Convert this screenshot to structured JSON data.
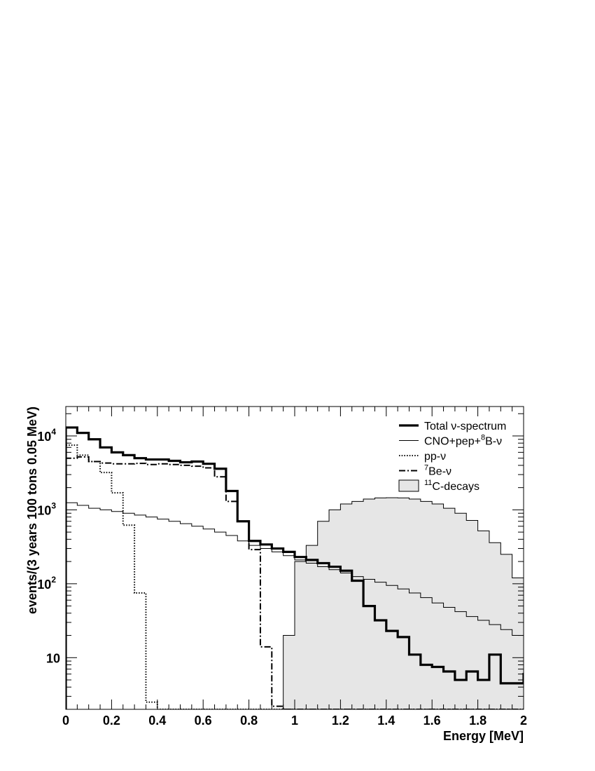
{
  "chart_data": {
    "type": "histogram",
    "xlabel": "Energy [MeV]",
    "ylabel": "events/(3 years  100 tons  0.05 MeV)",
    "xlim": [
      0,
      2
    ],
    "ylim": [
      2,
      25000
    ],
    "yscale": "log",
    "bin_width": 0.05,
    "x_ticks": [
      0,
      0.2,
      0.4,
      0.6,
      0.8,
      1,
      1.2,
      1.4,
      1.6,
      1.8,
      2
    ],
    "x_tick_labels": [
      "0",
      "0.2",
      "0.4",
      "0.6",
      "0.8",
      "1",
      "1.2",
      "1.4",
      "1.6",
      "1.8",
      "2"
    ],
    "y_ticks": [
      {
        "value": 10000,
        "base": "10",
        "exp": "4"
      },
      {
        "value": 1000,
        "base": "10",
        "exp": "3"
      },
      {
        "value": 100,
        "base": "10",
        "exp": "2"
      },
      {
        "value": 10,
        "base": "10",
        "exp": ""
      }
    ],
    "legend": {
      "position": "top-right",
      "entries": [
        {
          "id": "total",
          "text": "Total ν-spectrum",
          "sup": "",
          "after": ""
        },
        {
          "id": "cno",
          "text": "CNO+pep+",
          "sup": "8",
          "after": "B-ν"
        },
        {
          "id": "pp",
          "text": "pp-ν",
          "sup": "",
          "after": ""
        },
        {
          "id": "be7",
          "text": "",
          "sup": "7",
          "after": "Be-ν"
        },
        {
          "id": "c11",
          "text": "",
          "sup": "11",
          "after": "C-decays"
        }
      ]
    },
    "series": [
      {
        "id": "c11",
        "style": "filled",
        "values": [
          0,
          0,
          0,
          0,
          0,
          0,
          0,
          0,
          0,
          0,
          0,
          0,
          0,
          0,
          0,
          0,
          0,
          2,
          2,
          20,
          200,
          330,
          700,
          1000,
          1200,
          1300,
          1400,
          1450,
          1460,
          1450,
          1400,
          1300,
          1200,
          1050,
          900,
          720,
          520,
          360,
          250,
          120,
          28
        ]
      },
      {
        "id": "total",
        "style": "thick",
        "values": [
          13000,
          11000,
          9000,
          7000,
          6000,
          5500,
          5000,
          4800,
          4800,
          4600,
          4400,
          4500,
          4200,
          3600,
          1800,
          700,
          380,
          340,
          300,
          270,
          230,
          210,
          190,
          170,
          150,
          110,
          50,
          32,
          23,
          19,
          11,
          8,
          7.5,
          6.5,
          5,
          6.5,
          5,
          11,
          4.5,
          4.5,
          6,
          3.8
        ]
      },
      {
        "id": "cno",
        "style": "thin",
        "values": [
          1250,
          1150,
          1050,
          1000,
          950,
          900,
          850,
          800,
          750,
          700,
          650,
          600,
          550,
          500,
          450,
          380,
          330,
          300,
          270,
          240,
          210,
          190,
          170,
          155,
          140,
          125,
          115,
          105,
          95,
          85,
          75,
          65,
          55,
          48,
          42,
          36,
          32,
          28,
          24,
          20
        ]
      },
      {
        "id": "pp",
        "style": "dotted",
        "values": [
          7500,
          5500,
          4500,
          3200,
          1700,
          620,
          75,
          2.5,
          0,
          0,
          0,
          0,
          0,
          0,
          0,
          0,
          0,
          0,
          0,
          0,
          0,
          0,
          0,
          0,
          0,
          0,
          0,
          0,
          0,
          0,
          0,
          0,
          0,
          0,
          0,
          0,
          0,
          0,
          0,
          0
        ]
      },
      {
        "id": "be7",
        "style": "dashdot",
        "values": [
          5000,
          5200,
          4500,
          4300,
          4200,
          4200,
          4250,
          4100,
          4200,
          4100,
          4000,
          3900,
          3700,
          2800,
          1300,
          700,
          290,
          14,
          2.2,
          0,
          0,
          0,
          0,
          0,
          0,
          0,
          0,
          0,
          0,
          0,
          0,
          0,
          0,
          0,
          0,
          0,
          0,
          0,
          0,
          0
        ]
      }
    ]
  }
}
